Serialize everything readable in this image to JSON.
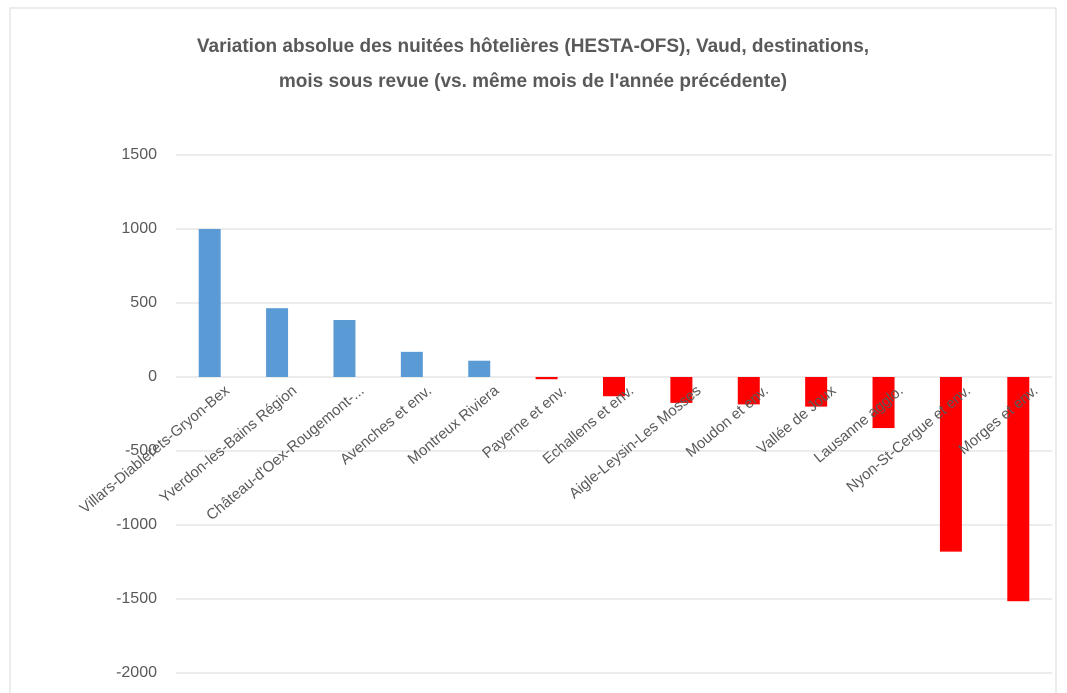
{
  "chart_data": {
    "type": "bar",
    "title": [
      "Variation absolue des nuitées hôtelières (HESTA-OFS), Vaud, destinations,",
      "mois sous revue (vs. même mois de l'année précédente)"
    ],
    "categories": [
      "Villars-Diablerets-Gryon-Bex",
      "Yverdon-les-Bains Région",
      "Château-d'Oex-Rougemont-...",
      "Avenches et env.",
      "Montreux Riviera",
      "Payerne et env.",
      "Echallens et env.",
      "Aigle-Leysin-Les Mosses",
      "Moudon et env.",
      "Vallée de Joux",
      "Lausanne agglo.",
      "Nyon-St-Cergue et env.",
      "Morges et env."
    ],
    "values": [
      1000,
      465,
      385,
      170,
      110,
      -15,
      -130,
      -175,
      -185,
      -200,
      -345,
      -1180,
      -1515
    ],
    "color": "#5b9bd5",
    "negative_color": "#ff0000",
    "ylim": [
      -2000,
      1500
    ],
    "yticks": [
      -2000,
      -1500,
      -1000,
      -500,
      0,
      500,
      1000,
      1500
    ],
    "grid": true
  }
}
